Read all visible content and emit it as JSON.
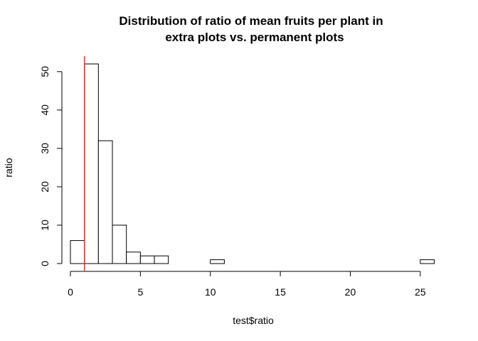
{
  "chart_data": {
    "type": "histogram",
    "title": [
      "Distribution of ratio of mean fruits per plant in",
      "extra plots vs. permanent plots"
    ],
    "xlabel": "test$ratio",
    "ylabel": "ratio",
    "bin_width": 1,
    "bins": [
      {
        "x0": 0,
        "x1": 1,
        "count": 6
      },
      {
        "x0": 1,
        "x1": 2,
        "count": 52
      },
      {
        "x0": 2,
        "x1": 3,
        "count": 32
      },
      {
        "x0": 3,
        "x1": 4,
        "count": 10
      },
      {
        "x0": 4,
        "x1": 5,
        "count": 3
      },
      {
        "x0": 5,
        "x1": 6,
        "count": 2
      },
      {
        "x0": 6,
        "x1": 7,
        "count": 2
      },
      {
        "x0": 7,
        "x1": 8,
        "count": 0
      },
      {
        "x0": 8,
        "x1": 9,
        "count": 0
      },
      {
        "x0": 9,
        "x1": 10,
        "count": 0
      },
      {
        "x0": 10,
        "x1": 11,
        "count": 1
      },
      {
        "x0": 11,
        "x1": 12,
        "count": 0
      },
      {
        "x0": 12,
        "x1": 13,
        "count": 0
      },
      {
        "x0": 13,
        "x1": 14,
        "count": 0
      },
      {
        "x0": 14,
        "x1": 15,
        "count": 0
      },
      {
        "x0": 15,
        "x1": 16,
        "count": 0
      },
      {
        "x0": 16,
        "x1": 17,
        "count": 0
      },
      {
        "x0": 17,
        "x1": 18,
        "count": 0
      },
      {
        "x0": 18,
        "x1": 19,
        "count": 0
      },
      {
        "x0": 19,
        "x1": 20,
        "count": 0
      },
      {
        "x0": 20,
        "x1": 21,
        "count": 0
      },
      {
        "x0": 21,
        "x1": 22,
        "count": 0
      },
      {
        "x0": 22,
        "x1": 23,
        "count": 0
      },
      {
        "x0": 23,
        "x1": 24,
        "count": 0
      },
      {
        "x0": 24,
        "x1": 25,
        "count": 0
      },
      {
        "x0": 25,
        "x1": 26,
        "count": 1
      }
    ],
    "xticks": [
      0,
      5,
      10,
      15,
      20,
      25
    ],
    "yticks": [
      0,
      10,
      20,
      30,
      40,
      50
    ],
    "xlim": [
      0,
      26
    ],
    "ylim": [
      0,
      52
    ],
    "reference_line": {
      "x": 1,
      "color": "#e8201c"
    },
    "bar_fill": "#ffffff",
    "bar_stroke": "#000000",
    "grid": false,
    "legend": "none"
  }
}
